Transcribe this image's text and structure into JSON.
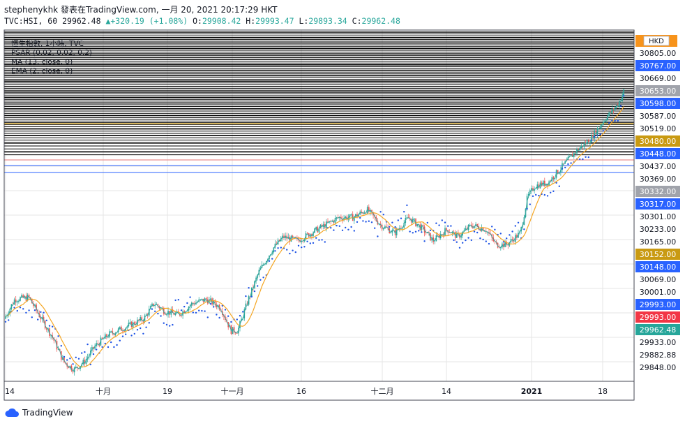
{
  "header": {
    "line1": "stephenykhk 發表在TradingView.com, 一月 20, 2021 20:17:29 HKT",
    "sym": "TVC:HSI, 60",
    "last": "29962.48",
    "arrow": "▲",
    "chg": "+320.19 (+1.08%)",
    "o_lbl": "O:",
    "o": "29908.42",
    "h_lbl": "H:",
    "h": "29993.47",
    "l_lbl": "L:",
    "l": "29893.34",
    "c_lbl": "C:",
    "c": "29962.48"
  },
  "legend": {
    "lines": [
      "恒生指數, 1小時, TVC",
      "PSAR (0.02, 0.02, 0.2)",
      "MA (13, close, 0)",
      "EMA (2, close, 0)"
    ]
  },
  "currency": "HKD",
  "brand": "TradingView",
  "colors": {
    "up": "#26a69a",
    "down": "#ef5350",
    "psar": "#1e53e5",
    "ma": "#f5a623",
    "ema": "#3fa7a0",
    "hline": "#000000",
    "hline_blue": "#2962ff",
    "grid": "#e6e6e6"
  },
  "chart_data": {
    "type": "candlestick",
    "x_tick_labels": [
      "14",
      "十月",
      "19",
      "十一月",
      "16",
      "十二月",
      "14",
      "2021",
      "18"
    ],
    "price_axis_labels": [
      {
        "text": "30805.00",
        "style": "plain"
      },
      {
        "text": "30767.00",
        "style": "blue"
      },
      {
        "text": "30669.00",
        "style": "plain"
      },
      {
        "text": "30653.00",
        "style": "gray"
      },
      {
        "text": "30598.00",
        "style": "blue"
      },
      {
        "text": "30587.00",
        "style": "plain"
      },
      {
        "text": "30519.00",
        "style": "plain"
      },
      {
        "text": "30480.00",
        "style": "gold"
      },
      {
        "text": "30448.00",
        "style": "blue"
      },
      {
        "text": "30437.00",
        "style": "plain"
      },
      {
        "text": "30369.00",
        "style": "plain"
      },
      {
        "text": "30332.00",
        "style": "gray"
      },
      {
        "text": "30317.00",
        "style": "blue"
      },
      {
        "text": "30301.00",
        "style": "plain"
      },
      {
        "text": "30233.00",
        "style": "plain"
      },
      {
        "text": "30165.00",
        "style": "plain"
      },
      {
        "text": "30152.00",
        "style": "gold"
      },
      {
        "text": "30148.00",
        "style": "blue"
      },
      {
        "text": "30069.00",
        "style": "plain"
      },
      {
        "text": "30001.00",
        "style": "plain"
      },
      {
        "text": "29993.00",
        "style": "blue"
      },
      {
        "text": "29993.00",
        "style": "red"
      },
      {
        "text": "29962.48",
        "style": "teal"
      },
      {
        "text": "29933.00",
        "style": "plain"
      },
      {
        "text": "29882.88",
        "style": "plain"
      },
      {
        "text": "29848.00",
        "style": "plain"
      }
    ],
    "series": [
      {
        "name": "PSAR (0.02, 0.02, 0.2)"
      },
      {
        "name": "MA (13, close, 0)"
      },
      {
        "name": "EMA (2, close, 0)"
      }
    ],
    "price_path_keypoints": [
      [
        0,
        24100
      ],
      [
        15,
        24600
      ],
      [
        35,
        24650
      ],
      [
        50,
        24200
      ],
      [
        70,
        23600
      ],
      [
        85,
        23000
      ],
      [
        100,
        22800
      ],
      [
        115,
        23000
      ],
      [
        130,
        23400
      ],
      [
        150,
        23700
      ],
      [
        175,
        23900
      ],
      [
        200,
        24100
      ],
      [
        215,
        24500
      ],
      [
        230,
        24300
      ],
      [
        250,
        24200
      ],
      [
        270,
        24500
      ],
      [
        290,
        24600
      ],
      [
        310,
        24400
      ],
      [
        325,
        23800
      ],
      [
        335,
        23800
      ],
      [
        350,
        24600
      ],
      [
        365,
        25300
      ],
      [
        385,
        25900
      ],
      [
        400,
        26200
      ],
      [
        420,
        26100
      ],
      [
        440,
        26300
      ],
      [
        460,
        26500
      ],
      [
        480,
        26700
      ],
      [
        500,
        26700
      ],
      [
        520,
        26900
      ],
      [
        540,
        26500
      ],
      [
        560,
        26300
      ],
      [
        580,
        26700
      ],
      [
        600,
        26400
      ],
      [
        615,
        26100
      ],
      [
        635,
        26400
      ],
      [
        650,
        26200
      ],
      [
        670,
        26500
      ],
      [
        690,
        26400
      ],
      [
        705,
        26000
      ],
      [
        720,
        26000
      ],
      [
        740,
        26300
      ],
      [
        750,
        27200
      ],
      [
        760,
        27500
      ],
      [
        780,
        27600
      ],
      [
        800,
        28000
      ],
      [
        820,
        28400
      ],
      [
        840,
        28700
      ],
      [
        860,
        29200
      ],
      [
        870,
        29400
      ],
      [
        880,
        29600
      ],
      [
        895,
        30200
      ]
    ],
    "horizontal_lines_count": 62
  }
}
